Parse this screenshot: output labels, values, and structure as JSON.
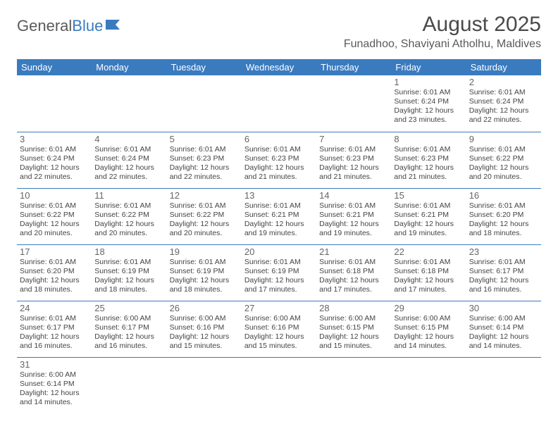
{
  "logo": {
    "part1": "General",
    "part2": "Blue"
  },
  "title": "August 2025",
  "location": "Funadhoo, Shaviyani Atholhu, Maldives",
  "colors": {
    "header_bg": "#3a7bbf",
    "header_text": "#ffffff",
    "cell_border": "#3a7bbf",
    "text": "#444444",
    "title_text": "#4a4a4a"
  },
  "fonts": {
    "title_size": 30,
    "location_size": 16,
    "th_size": 13,
    "daynum_size": 13,
    "info_size": 10.5
  },
  "day_headers": [
    "Sunday",
    "Monday",
    "Tuesday",
    "Wednesday",
    "Thursday",
    "Friday",
    "Saturday"
  ],
  "weeks": [
    [
      null,
      null,
      null,
      null,
      null,
      {
        "n": "1",
        "sunrise": "Sunrise: 6:01 AM",
        "sunset": "Sunset: 6:24 PM",
        "day": "Daylight: 12 hours and 23 minutes."
      },
      {
        "n": "2",
        "sunrise": "Sunrise: 6:01 AM",
        "sunset": "Sunset: 6:24 PM",
        "day": "Daylight: 12 hours and 22 minutes."
      }
    ],
    [
      {
        "n": "3",
        "sunrise": "Sunrise: 6:01 AM",
        "sunset": "Sunset: 6:24 PM",
        "day": "Daylight: 12 hours and 22 minutes."
      },
      {
        "n": "4",
        "sunrise": "Sunrise: 6:01 AM",
        "sunset": "Sunset: 6:24 PM",
        "day": "Daylight: 12 hours and 22 minutes."
      },
      {
        "n": "5",
        "sunrise": "Sunrise: 6:01 AM",
        "sunset": "Sunset: 6:23 PM",
        "day": "Daylight: 12 hours and 22 minutes."
      },
      {
        "n": "6",
        "sunrise": "Sunrise: 6:01 AM",
        "sunset": "Sunset: 6:23 PM",
        "day": "Daylight: 12 hours and 21 minutes."
      },
      {
        "n": "7",
        "sunrise": "Sunrise: 6:01 AM",
        "sunset": "Sunset: 6:23 PM",
        "day": "Daylight: 12 hours and 21 minutes."
      },
      {
        "n": "8",
        "sunrise": "Sunrise: 6:01 AM",
        "sunset": "Sunset: 6:23 PM",
        "day": "Daylight: 12 hours and 21 minutes."
      },
      {
        "n": "9",
        "sunrise": "Sunrise: 6:01 AM",
        "sunset": "Sunset: 6:22 PM",
        "day": "Daylight: 12 hours and 20 minutes."
      }
    ],
    [
      {
        "n": "10",
        "sunrise": "Sunrise: 6:01 AM",
        "sunset": "Sunset: 6:22 PM",
        "day": "Daylight: 12 hours and 20 minutes."
      },
      {
        "n": "11",
        "sunrise": "Sunrise: 6:01 AM",
        "sunset": "Sunset: 6:22 PM",
        "day": "Daylight: 12 hours and 20 minutes."
      },
      {
        "n": "12",
        "sunrise": "Sunrise: 6:01 AM",
        "sunset": "Sunset: 6:22 PM",
        "day": "Daylight: 12 hours and 20 minutes."
      },
      {
        "n": "13",
        "sunrise": "Sunrise: 6:01 AM",
        "sunset": "Sunset: 6:21 PM",
        "day": "Daylight: 12 hours and 19 minutes."
      },
      {
        "n": "14",
        "sunrise": "Sunrise: 6:01 AM",
        "sunset": "Sunset: 6:21 PM",
        "day": "Daylight: 12 hours and 19 minutes."
      },
      {
        "n": "15",
        "sunrise": "Sunrise: 6:01 AM",
        "sunset": "Sunset: 6:21 PM",
        "day": "Daylight: 12 hours and 19 minutes."
      },
      {
        "n": "16",
        "sunrise": "Sunrise: 6:01 AM",
        "sunset": "Sunset: 6:20 PM",
        "day": "Daylight: 12 hours and 18 minutes."
      }
    ],
    [
      {
        "n": "17",
        "sunrise": "Sunrise: 6:01 AM",
        "sunset": "Sunset: 6:20 PM",
        "day": "Daylight: 12 hours and 18 minutes."
      },
      {
        "n": "18",
        "sunrise": "Sunrise: 6:01 AM",
        "sunset": "Sunset: 6:19 PM",
        "day": "Daylight: 12 hours and 18 minutes."
      },
      {
        "n": "19",
        "sunrise": "Sunrise: 6:01 AM",
        "sunset": "Sunset: 6:19 PM",
        "day": "Daylight: 12 hours and 18 minutes."
      },
      {
        "n": "20",
        "sunrise": "Sunrise: 6:01 AM",
        "sunset": "Sunset: 6:19 PM",
        "day": "Daylight: 12 hours and 17 minutes."
      },
      {
        "n": "21",
        "sunrise": "Sunrise: 6:01 AM",
        "sunset": "Sunset: 6:18 PM",
        "day": "Daylight: 12 hours and 17 minutes."
      },
      {
        "n": "22",
        "sunrise": "Sunrise: 6:01 AM",
        "sunset": "Sunset: 6:18 PM",
        "day": "Daylight: 12 hours and 17 minutes."
      },
      {
        "n": "23",
        "sunrise": "Sunrise: 6:01 AM",
        "sunset": "Sunset: 6:17 PM",
        "day": "Daylight: 12 hours and 16 minutes."
      }
    ],
    [
      {
        "n": "24",
        "sunrise": "Sunrise: 6:01 AM",
        "sunset": "Sunset: 6:17 PM",
        "day": "Daylight: 12 hours and 16 minutes."
      },
      {
        "n": "25",
        "sunrise": "Sunrise: 6:00 AM",
        "sunset": "Sunset: 6:17 PM",
        "day": "Daylight: 12 hours and 16 minutes."
      },
      {
        "n": "26",
        "sunrise": "Sunrise: 6:00 AM",
        "sunset": "Sunset: 6:16 PM",
        "day": "Daylight: 12 hours and 15 minutes."
      },
      {
        "n": "27",
        "sunrise": "Sunrise: 6:00 AM",
        "sunset": "Sunset: 6:16 PM",
        "day": "Daylight: 12 hours and 15 minutes."
      },
      {
        "n": "28",
        "sunrise": "Sunrise: 6:00 AM",
        "sunset": "Sunset: 6:15 PM",
        "day": "Daylight: 12 hours and 15 minutes."
      },
      {
        "n": "29",
        "sunrise": "Sunrise: 6:00 AM",
        "sunset": "Sunset: 6:15 PM",
        "day": "Daylight: 12 hours and 14 minutes."
      },
      {
        "n": "30",
        "sunrise": "Sunrise: 6:00 AM",
        "sunset": "Sunset: 6:14 PM",
        "day": "Daylight: 12 hours and 14 minutes."
      }
    ],
    [
      {
        "n": "31",
        "sunrise": "Sunrise: 6:00 AM",
        "sunset": "Sunset: 6:14 PM",
        "day": "Daylight: 12 hours and 14 minutes."
      },
      null,
      null,
      null,
      null,
      null,
      null
    ]
  ]
}
